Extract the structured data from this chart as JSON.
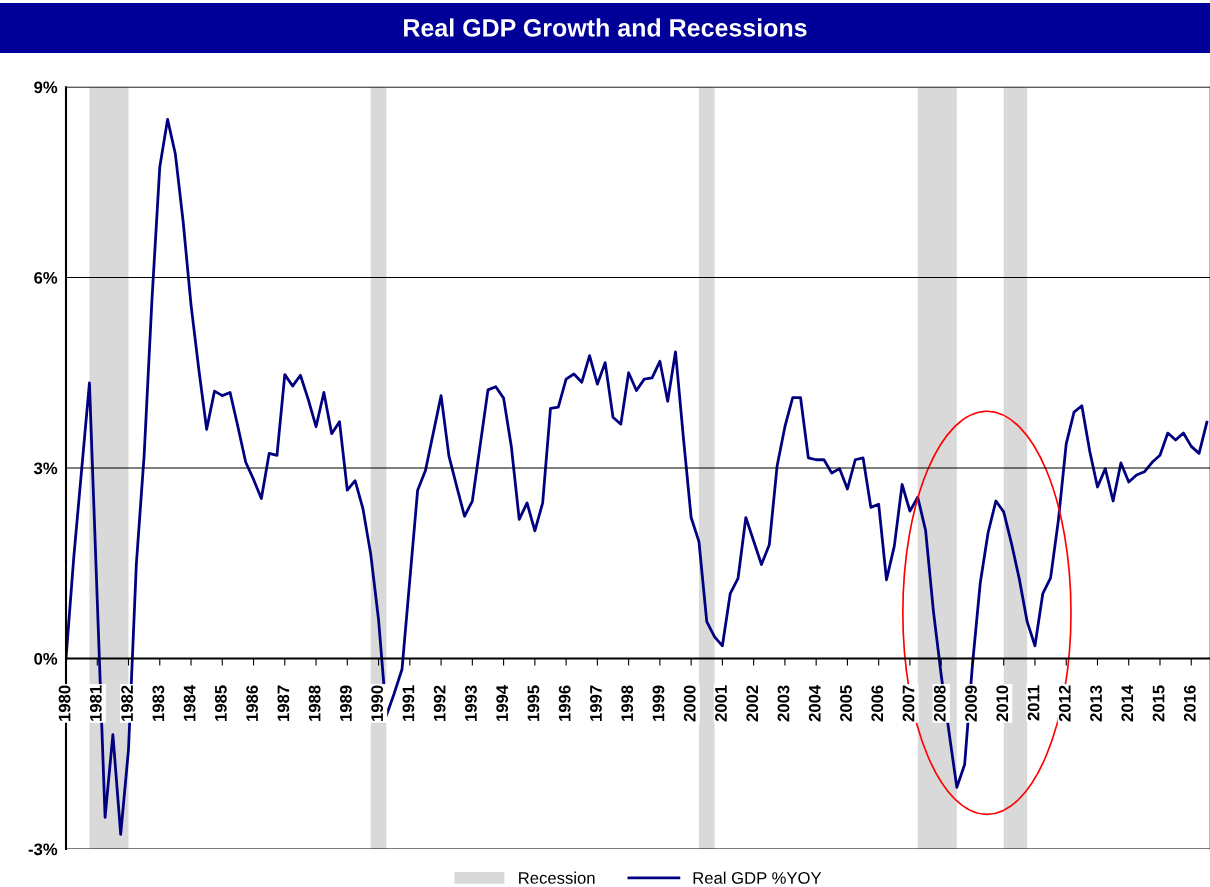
{
  "chart_data": {
    "type": "line",
    "title": "Real GDP Growth and Recessions",
    "series": [
      {
        "name": "Real GDP %YOY",
        "color": "#000080",
        "x": [
          1980.0,
          1980.25,
          1980.75,
          1981.25,
          1981.5,
          1981.75,
          1982.0,
          1982.25,
          1982.5,
          1982.75,
          1983.0,
          1983.25,
          1983.5,
          1983.75,
          1984.0,
          1984.25,
          1984.5,
          1984.75,
          1985.0,
          1985.25,
          1985.5,
          1985.75,
          1986.0,
          1986.25,
          1986.5,
          1986.75,
          1987.0,
          1987.25,
          1987.5,
          1987.75,
          1988.0,
          1988.25,
          1988.5,
          1988.75,
          1989.0,
          1989.25,
          1989.5,
          1989.75,
          1990.0,
          1990.25,
          1990.5,
          1990.75,
          1991.25,
          1991.5,
          1992.0,
          1992.25,
          1992.5,
          1992.75,
          1993.0,
          1993.5,
          1993.75,
          1994.0,
          1994.25,
          1994.5,
          1994.75,
          1995.0,
          1995.25,
          1995.5,
          1995.75,
          1996.0,
          1996.25,
          1996.5,
          1996.75,
          1997.0,
          1997.25,
          1997.5,
          1997.75,
          1998.0,
          1998.25,
          1998.5,
          1998.75,
          1999.0,
          1999.25,
          1999.5,
          1999.75,
          2000.0,
          2000.25,
          2000.5,
          2000.75,
          2001.0,
          2001.25,
          2001.5,
          2001.75,
          2002.25,
          2002.5,
          2002.75,
          2003.0,
          2003.25,
          2003.5,
          2003.75,
          2004.0,
          2004.25,
          2004.5,
          2004.75,
          2005.0,
          2005.25,
          2005.5,
          2005.75,
          2006.0,
          2006.25,
          2006.5,
          2006.75,
          2007.0,
          2007.25,
          2007.5,
          2007.75,
          2008.0,
          2008.25,
          2008.5,
          2008.75,
          2009.0,
          2009.25,
          2009.5,
          2009.75,
          2010.0,
          2010.25,
          2010.5,
          2010.75,
          2011.0,
          2011.25,
          2011.5,
          2011.75,
          2012.0,
          2012.25,
          2012.5,
          2012.75,
          2013.0,
          2013.25,
          2013.5,
          2013.75,
          2014.0,
          2014.25,
          2014.5,
          2014.75,
          2015.0,
          2015.25,
          2015.5,
          2015.75,
          2016.0,
          2016.25,
          2016.5
        ],
        "values": [
          0.0,
          1.6,
          4.34,
          -2.5,
          -1.2,
          -2.77,
          -1.43,
          1.48,
          3.2,
          5.65,
          7.74,
          8.49,
          7.94,
          6.87,
          5.57,
          4.55,
          3.61,
          4.21,
          4.14,
          4.19,
          3.65,
          3.09,
          2.82,
          2.52,
          3.23,
          3.2,
          4.47,
          4.29,
          4.46,
          4.08,
          3.65,
          4.19,
          3.54,
          3.73,
          2.65,
          2.8,
          2.36,
          1.64,
          0.61,
          -0.9,
          -0.55,
          -0.17,
          2.65,
          2.96,
          4.14,
          3.19,
          2.71,
          2.24,
          2.48,
          4.23,
          4.28,
          4.1,
          3.33,
          2.19,
          2.45,
          2.01,
          2.45,
          3.94,
          3.96,
          4.4,
          4.48,
          4.35,
          4.77,
          4.32,
          4.66,
          3.8,
          3.69,
          4.5,
          4.22,
          4.4,
          4.42,
          4.68,
          4.05,
          4.83,
          3.49,
          2.22,
          1.84,
          0.58,
          0.34,
          0.2,
          1.02,
          1.26,
          2.22,
          1.48,
          1.79,
          3.03,
          3.65,
          4.11,
          4.11,
          3.16,
          3.13,
          3.13,
          2.92,
          2.99,
          2.67,
          3.13,
          3.16,
          2.38,
          2.43,
          1.24,
          1.77,
          2.74,
          2.32,
          2.54,
          2.02,
          0.75,
          -0.26,
          -1.16,
          -2.03,
          -1.67,
          -0.1,
          1.19,
          1.98,
          2.48,
          2.31,
          1.81,
          1.25,
          0.58,
          0.2,
          1.02,
          1.27,
          2.18,
          3.38,
          3.88,
          3.98,
          3.27,
          2.7,
          2.99,
          2.48,
          3.08,
          2.78,
          2.89,
          2.94,
          3.09,
          3.2,
          3.55,
          3.44,
          3.55,
          3.34,
          3.23,
          3.72
        ]
      }
    ],
    "bands": [
      {
        "axis": "x",
        "from": 1980.75,
        "to": 1982.0,
        "label": "Recession",
        "color": "#d9d9d9"
      },
      {
        "axis": "x",
        "from": 1989.75,
        "to": 1990.25,
        "color": "#d9d9d9"
      },
      {
        "axis": "x",
        "from": 2000.25,
        "to": 2000.75,
        "color": "#d9d9d9"
      },
      {
        "axis": "x",
        "from": 2007.25,
        "to": 2008.5,
        "color": "#d9d9d9"
      },
      {
        "axis": "x",
        "from": 2010.0,
        "to": 2010.75,
        "color": "#d9d9d9"
      }
    ],
    "xlim": [
      1980,
      2016.6
    ],
    "xticks": [
      1980,
      1981,
      1982,
      1983,
      1984,
      1985,
      1986,
      1987,
      1988,
      1989,
      1990,
      1991,
      1992,
      1993,
      1994,
      1995,
      1996,
      1997,
      1998,
      1999,
      2000,
      2001,
      2002,
      2003,
      2004,
      2005,
      2006,
      2007,
      2008,
      2009,
      2010,
      2011,
      2012,
      2013,
      2014,
      2015,
      2016
    ],
    "ylim": [
      -3,
      9
    ],
    "yticks": [
      {
        "value": -3,
        "label": "-3%"
      },
      {
        "value": 0,
        "label": "0%"
      },
      {
        "value": 3,
        "label": "3%"
      },
      {
        "value": 6,
        "label": "6%"
      },
      {
        "value": 9,
        "label": "9%"
      }
    ],
    "grid": "y",
    "legend": "bottom",
    "marker": "none",
    "line_style": "solid"
  }
}
